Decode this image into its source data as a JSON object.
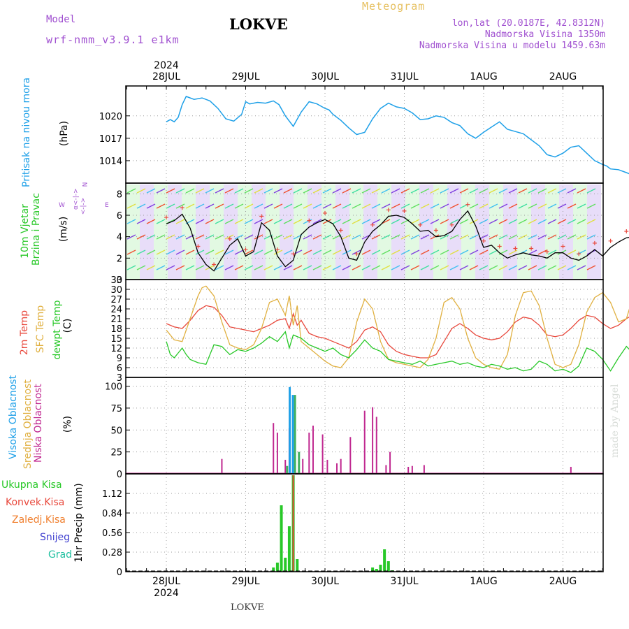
{
  "header": {
    "model_label": "Model",
    "model_name": "wrf-nmm_v3.9.1 e1km",
    "title": "LOKVE",
    "meteogram_label": "Meteogram",
    "lonlat": "lon,lat (20.0187E, 42.8312N)",
    "altitude": "Nadmorska Visina 1350m",
    "model_altitude": "Nadmorska Visina u modelu 1459.63m"
  },
  "footer": {
    "station": "LOKVE",
    "watermark": "made by Angel"
  },
  "time_axis": {
    "top_year": "2024",
    "bottom_year": "2024",
    "labels": [
      "28JUL",
      "29JUL",
      "30JUL",
      "31JUL",
      "1AUG",
      "2AUG"
    ]
  },
  "colors": {
    "pressure": "#1ea0e8",
    "temp2m": "#e8483c",
    "sfc_temp": "#e0b040",
    "dewpt": "#28c828",
    "high_cloud": "#1ea0e8",
    "mid_cloud": "#e0b040",
    "low_cloud": "#c02890",
    "total_rain": "#28c828",
    "conv_rain": "#e8483c",
    "frozen_rain": "#f08030",
    "snow": "#4040d0",
    "graupel": "#20c0a0"
  },
  "panels": {
    "pressure": {
      "ylabel_name": "Pritisak na nivou mora",
      "ylabel_unit": "(hPa)"
    },
    "wind": {
      "ylabel_name1": "10m Vjetar",
      "ylabel_name2": "Brzina i Pravac",
      "ylabel_unit": "(m/s)",
      "compass_n": "N",
      "compass_w": "W",
      "compass_e": "E",
      "compass_dash": "<-|->",
      "compass_alpha": "α<-|->"
    },
    "temperature": {
      "ylabel_t2m": "2m Temp",
      "ylabel_sfc": "SFC Temp",
      "ylabel_dew": "dewpt Temp",
      "ylabel_unit": "(C)"
    },
    "cloud": {
      "ylabel_high": "Visoka Oblacnost",
      "ylabel_mid": "Srednja Oblacnost",
      "ylabel_low": "Niska Oblacnost",
      "ylabel_unit": "(%)"
    },
    "precip": {
      "ylabel": "1hr Precip (mm)",
      "legend": [
        "Ukupna Kisa",
        "Konvek.Kisa",
        "Zaledj.Kisa",
        "Snijeg",
        "Grad"
      ]
    }
  },
  "chart_data": [
    {
      "type": "line",
      "name": "pressure",
      "ylim": [
        1011,
        1024
      ],
      "yticks": [
        1014,
        1017,
        1020
      ],
      "grid": true,
      "x_days": [
        0.0,
        0.05,
        0.1,
        0.15,
        0.2,
        0.25,
        0.35,
        0.45,
        0.55,
        0.65,
        0.75,
        0.85,
        0.95,
        1.0,
        1.05,
        1.15,
        1.25,
        1.35,
        1.42,
        1.5,
        1.6,
        1.7,
        1.8,
        1.9,
        2.0,
        2.05,
        2.1,
        2.2,
        2.3,
        2.4,
        2.5,
        2.55,
        2.6,
        2.7,
        2.8,
        2.9,
        3.0,
        3.1,
        3.2,
        3.3,
        3.4,
        3.5,
        3.6,
        3.7,
        3.8,
        3.9,
        4.0,
        4.1,
        4.2,
        4.3,
        4.4,
        4.5,
        4.6,
        4.7,
        4.8,
        4.9,
        5.0,
        5.1,
        5.2,
        5.3,
        5.4,
        5.5,
        5.55,
        5.6,
        5.7,
        5.8,
        5.9,
        6.0
      ],
      "values": [
        1019.2,
        1019.5,
        1019.2,
        1019.8,
        1021.5,
        1022.6,
        1022.2,
        1022.4,
        1022.0,
        1021.0,
        1019.6,
        1019.3,
        1020.2,
        1021.9,
        1021.6,
        1021.8,
        1021.7,
        1022.0,
        1021.5,
        1020.0,
        1018.6,
        1020.5,
        1021.9,
        1021.6,
        1021.0,
        1020.8,
        1020.2,
        1019.4,
        1018.4,
        1017.5,
        1017.8,
        1018.7,
        1019.6,
        1021.0,
        1021.7,
        1021.2,
        1021.0,
        1020.4,
        1019.5,
        1019.6,
        1020.0,
        1019.8,
        1019.1,
        1018.7,
        1017.6,
        1017.0,
        1017.8,
        1018.5,
        1019.2,
        1018.2,
        1017.9,
        1017.6,
        1016.8,
        1016.0,
        1014.8,
        1014.5,
        1015.0,
        1015.8,
        1016.0,
        1015.0,
        1014.0,
        1013.5,
        1013.3,
        1012.9,
        1012.8,
        1012.4,
        1012.0,
        1011.3
      ]
    },
    {
      "type": "line",
      "name": "wind_speed",
      "ylim": [
        0,
        9
      ],
      "yticks": [
        0,
        2,
        4,
        6,
        8
      ],
      "grid": true,
      "series": [
        {
          "x_days": [
            0.0,
            0.1,
            0.2,
            0.3,
            0.4,
            0.5,
            0.6,
            0.7,
            0.8,
            0.9,
            1.0,
            1.1,
            1.2,
            1.3,
            1.4,
            1.5,
            1.6,
            1.7,
            1.8,
            1.9,
            2.0,
            2.1,
            2.2,
            2.3,
            2.4,
            2.5,
            2.6,
            2.7,
            2.8,
            2.9,
            3.0,
            3.1,
            3.2,
            3.3,
            3.4,
            3.5,
            3.6,
            3.7,
            3.8,
            3.9,
            4.0,
            4.1,
            4.2,
            4.3,
            4.4,
            4.5,
            4.6,
            4.7,
            4.8,
            4.9,
            5.0,
            5.1,
            5.2,
            5.3,
            5.4,
            5.5,
            5.6,
            5.7,
            5.8,
            5.9,
            6.0
          ],
          "values": [
            5.2,
            5.5,
            6.1,
            4.8,
            2.5,
            1.4,
            0.8,
            2.0,
            3.2,
            3.8,
            2.2,
            2.6,
            5.3,
            4.6,
            2.2,
            1.2,
            1.8,
            4.2,
            4.9,
            5.3,
            5.6,
            5.2,
            4.0,
            2.0,
            1.8,
            3.5,
            4.5,
            5.1,
            5.9,
            6.0,
            5.8,
            5.2,
            4.5,
            4.6,
            4.0,
            4.1,
            4.5,
            5.6,
            6.4,
            5.0,
            3.0,
            3.2,
            2.5,
            2.0,
            2.3,
            2.5,
            2.3,
            2.2,
            2.0,
            2.5,
            2.5,
            2.0,
            1.8,
            2.2,
            2.8,
            2.2,
            3.0,
            3.5,
            3.9,
            4.0,
            3.3
          ]
        }
      ]
    },
    {
      "type": "line",
      "name": "temperature",
      "ylim": [
        3,
        33
      ],
      "yticks": [
        3,
        6,
        9,
        12,
        15,
        18,
        21,
        24,
        27,
        30,
        33
      ],
      "grid": true,
      "series": [
        {
          "key": "t2m",
          "x_days": [
            0.0,
            0.1,
            0.2,
            0.3,
            0.4,
            0.5,
            0.6,
            0.7,
            0.8,
            0.9,
            1.0,
            1.1,
            1.2,
            1.3,
            1.4,
            1.5,
            1.55,
            1.6,
            1.65,
            1.7,
            1.8,
            1.9,
            2.0,
            2.1,
            2.2,
            2.3,
            2.4,
            2.5,
            2.6,
            2.7,
            2.8,
            2.9,
            3.0,
            3.1,
            3.2,
            3.3,
            3.4,
            3.5,
            3.6,
            3.7,
            3.8,
            3.9,
            4.0,
            4.1,
            4.2,
            4.3,
            4.4,
            4.5,
            4.6,
            4.7,
            4.8,
            4.9,
            5.0,
            5.1,
            5.2,
            5.3,
            5.4,
            5.5,
            5.6,
            5.7,
            5.8,
            5.9,
            6.0
          ],
          "values": [
            19.5,
            18.5,
            18.0,
            20.5,
            23.5,
            25.0,
            24.5,
            22.0,
            18.5,
            18.0,
            17.5,
            17.0,
            18.0,
            19.0,
            20.5,
            21.0,
            18.0,
            22.5,
            19.0,
            20.5,
            16.5,
            15.5,
            15.0,
            14.0,
            13.0,
            12.0,
            14.0,
            17.5,
            18.5,
            17.0,
            13.0,
            11.0,
            10.0,
            9.5,
            9.0,
            9.0,
            10.0,
            14.0,
            18.0,
            19.5,
            18.0,
            16.0,
            15.0,
            14.5,
            15.0,
            17.0,
            20.0,
            21.5,
            21.0,
            19.0,
            16.0,
            15.5,
            16.0,
            18.0,
            20.5,
            22.0,
            21.5,
            19.5,
            18.0,
            19.0,
            21.0,
            22.5,
            23.5
          ]
        },
        {
          "key": "sfc",
          "x_days": [
            0.0,
            0.1,
            0.2,
            0.3,
            0.4,
            0.45,
            0.5,
            0.6,
            0.7,
            0.8,
            0.9,
            1.0,
            1.1,
            1.2,
            1.3,
            1.4,
            1.5,
            1.55,
            1.6,
            1.65,
            1.7,
            1.8,
            1.9,
            2.0,
            2.1,
            2.2,
            2.3,
            2.4,
            2.5,
            2.6,
            2.7,
            2.8,
            2.9,
            3.0,
            3.1,
            3.2,
            3.3,
            3.4,
            3.5,
            3.6,
            3.7,
            3.8,
            3.9,
            4.0,
            4.1,
            4.2,
            4.3,
            4.4,
            4.5,
            4.6,
            4.7,
            4.8,
            4.9,
            5.0,
            5.1,
            5.2,
            5.3,
            5.4,
            5.5,
            5.6,
            5.7,
            5.8,
            5.9,
            6.0
          ],
          "values": [
            17.5,
            14.5,
            14.0,
            21.0,
            28.0,
            30.5,
            31.0,
            28.0,
            20.0,
            13.0,
            12.0,
            11.5,
            13.0,
            18.0,
            26.0,
            27.0,
            22.0,
            28.0,
            19.0,
            25.0,
            14.0,
            12.0,
            10.0,
            8.0,
            6.5,
            6.0,
            9.0,
            20.0,
            27.0,
            24.0,
            14.0,
            8.5,
            7.5,
            7.0,
            6.5,
            6.0,
            8.5,
            15.0,
            26.0,
            27.5,
            24.0,
            15.0,
            9.0,
            7.0,
            6.0,
            5.5,
            10.0,
            22.0,
            29.0,
            29.5,
            25.0,
            15.0,
            7.0,
            6.0,
            7.0,
            13.0,
            23.0,
            27.5,
            29.0,
            26.0,
            20.0,
            21.0,
            29.0,
            30.0
          ]
        },
        {
          "key": "dew",
          "x_days": [
            0.0,
            0.05,
            0.1,
            0.2,
            0.25,
            0.3,
            0.4,
            0.5,
            0.6,
            0.7,
            0.8,
            0.9,
            1.0,
            1.1,
            1.2,
            1.3,
            1.4,
            1.5,
            1.55,
            1.6,
            1.7,
            1.8,
            1.9,
            2.0,
            2.1,
            2.2,
            2.3,
            2.4,
            2.5,
            2.6,
            2.7,
            2.8,
            2.9,
            3.0,
            3.1,
            3.2,
            3.3,
            3.4,
            3.5,
            3.6,
            3.7,
            3.8,
            3.9,
            4.0,
            4.1,
            4.2,
            4.3,
            4.4,
            4.5,
            4.6,
            4.7,
            4.8,
            4.9,
            5.0,
            5.1,
            5.2,
            5.3,
            5.4,
            5.5,
            5.6,
            5.7,
            5.8,
            5.9,
            6.0
          ],
          "values": [
            14.0,
            10.0,
            9.0,
            12.0,
            10.0,
            8.5,
            7.5,
            7.0,
            13.0,
            12.5,
            10.0,
            11.5,
            11.0,
            12.0,
            13.5,
            15.5,
            14.0,
            17.0,
            12.0,
            16.0,
            15.0,
            13.0,
            12.0,
            11.0,
            12.0,
            10.0,
            9.0,
            11.5,
            14.5,
            12.0,
            11.0,
            8.5,
            8.0,
            7.5,
            7.0,
            8.0,
            6.5,
            7.0,
            7.5,
            8.0,
            7.0,
            7.5,
            6.5,
            6.0,
            7.0,
            6.5,
            5.5,
            6.0,
            5.0,
            5.5,
            8.0,
            7.0,
            5.0,
            5.5,
            4.5,
            6.5,
            12.0,
            11.0,
            8.5,
            5.0,
            9.0,
            12.5,
            10.0,
            4.5
          ]
        }
      ]
    },
    {
      "type": "bar",
      "name": "cloud_cover",
      "ylim": [
        0,
        110
      ],
      "yticks": [
        0,
        25,
        50,
        75,
        100
      ],
      "grid": true,
      "low_bars": [
        [
          0.7,
          17
        ],
        [
          1.35,
          58
        ],
        [
          1.4,
          47
        ],
        [
          1.5,
          16
        ],
        [
          1.55,
          52
        ],
        [
          1.62,
          25
        ],
        [
          1.67,
          25
        ],
        [
          1.72,
          17
        ],
        [
          1.8,
          47
        ],
        [
          1.85,
          55
        ],
        [
          1.97,
          45
        ],
        [
          2.03,
          16
        ],
        [
          2.15,
          12
        ],
        [
          2.2,
          17
        ],
        [
          2.32,
          42
        ],
        [
          2.5,
          72
        ],
        [
          2.6,
          76
        ],
        [
          2.65,
          65
        ],
        [
          2.77,
          10
        ],
        [
          2.82,
          25
        ],
        [
          3.05,
          8
        ],
        [
          3.1,
          9
        ],
        [
          3.25,
          10
        ],
        [
          5.1,
          8
        ]
      ],
      "mid_bars": [
        [
          1.5,
          9
        ],
        [
          1.6,
          90
        ],
        [
          1.65,
          25
        ]
      ],
      "high_bars": [
        [
          1.56,
          99
        ],
        [
          1.6,
          90
        ]
      ]
    },
    {
      "type": "bar",
      "name": "precip",
      "ylim": [
        0,
        1.4
      ],
      "yticks": [
        0,
        0.28,
        0.56,
        0.84,
        1.12
      ],
      "tick_labels": [
        "0",
        "0.28",
        "0.56",
        "0.84",
        "1.12"
      ],
      "grid": true,
      "total_bars": [
        [
          1.35,
          0.06
        ],
        [
          1.4,
          0.13
        ],
        [
          1.45,
          0.95
        ],
        [
          1.5,
          0.2
        ],
        [
          1.55,
          0.65
        ],
        [
          1.6,
          1.38
        ],
        [
          1.65,
          0.18
        ],
        [
          2.6,
          0.06
        ],
        [
          2.65,
          0.04
        ],
        [
          2.7,
          0.1
        ],
        [
          2.75,
          0.32
        ],
        [
          2.8,
          0.15
        ],
        [
          2.85,
          0.02
        ]
      ],
      "conv_bars": [
        [
          1.6,
          1.38
        ]
      ]
    }
  ]
}
